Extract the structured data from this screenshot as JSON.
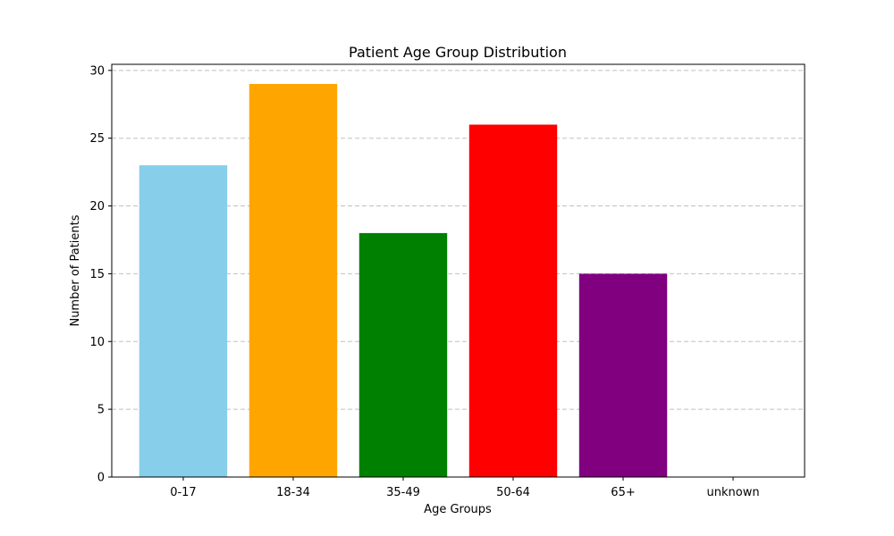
{
  "chart_data": {
    "type": "bar",
    "title": "Patient Age Group Distribution",
    "xlabel": "Age Groups",
    "ylabel": "Number of Patients",
    "categories": [
      "0-17",
      "18-34",
      "35-49",
      "50-64",
      "65+",
      "unknown"
    ],
    "values": [
      23,
      29,
      18,
      26,
      15,
      0
    ],
    "colors": [
      "#87ceeb",
      "#ffa500",
      "#008000",
      "#ff0000",
      "#800080",
      "#808080"
    ],
    "ylim": [
      0,
      30.45
    ],
    "yticks": [
      0,
      5,
      10,
      15,
      20,
      25,
      30
    ],
    "grid": "y-dashed"
  }
}
